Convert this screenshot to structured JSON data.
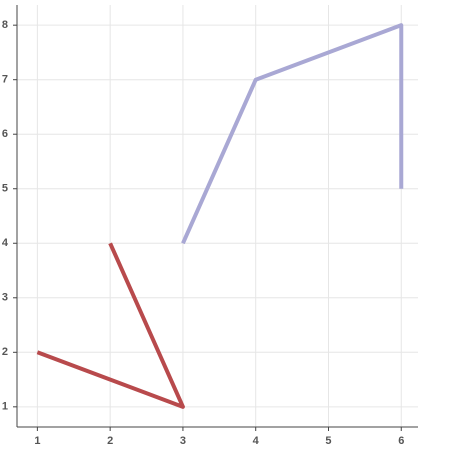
{
  "chart_data": {
    "type": "line",
    "series": [
      {
        "color": "#b84a4c",
        "x": [
          1,
          3,
          2
        ],
        "values": [
          2,
          1,
          4
        ]
      },
      {
        "color": "#a9a8d4",
        "x": [
          3,
          4,
          6,
          6
        ],
        "values": [
          4,
          7,
          8,
          5
        ]
      }
    ],
    "xlim": [
      0.72,
      6.23
    ],
    "xticks": [
      1,
      2,
      3,
      4,
      5,
      6
    ],
    "ylim": [
      0.63,
      8.37
    ],
    "yticks": [
      1,
      2,
      3,
      4,
      5,
      6,
      7,
      8
    ],
    "grid": true
  }
}
